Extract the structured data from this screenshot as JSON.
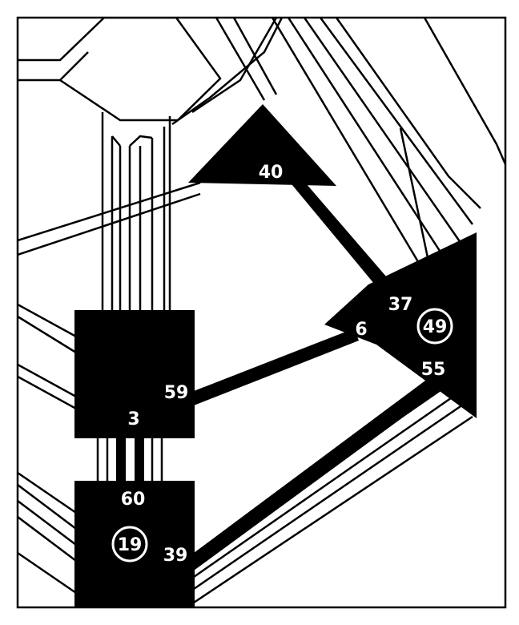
{
  "diagram": {
    "colors": {
      "ink": "#000000",
      "paper": "#ffffff"
    },
    "nodes": [
      {
        "id": "tri-40",
        "shape": "triangle",
        "labels": [
          "40"
        ],
        "circled": []
      },
      {
        "id": "tri-right",
        "shape": "triangle",
        "labels": [
          "37",
          "6",
          "55"
        ],
        "circled": [
          "49"
        ]
      },
      {
        "id": "box-upper",
        "shape": "box",
        "labels": [
          "59",
          "3"
        ],
        "circled": []
      },
      {
        "id": "box-lower",
        "shape": "box",
        "labels": [
          "60",
          "39"
        ],
        "circled": [
          "19"
        ]
      }
    ],
    "labels": {
      "n40": "40",
      "n37": "37",
      "n6": "6",
      "n49": "49",
      "n55": "55",
      "n59": "59",
      "n3": "3",
      "n60": "60",
      "n19": "19",
      "n39": "39"
    },
    "connectors": [
      {
        "from": "tri-40",
        "to": "tri-right",
        "style": "thick"
      },
      {
        "from": "box-upper",
        "to": "tri-right",
        "style": "thick"
      },
      {
        "from": "box-lower",
        "to": "tri-right",
        "style": "thick"
      },
      {
        "from": "box-upper",
        "to": "box-lower",
        "style": "double"
      }
    ]
  }
}
